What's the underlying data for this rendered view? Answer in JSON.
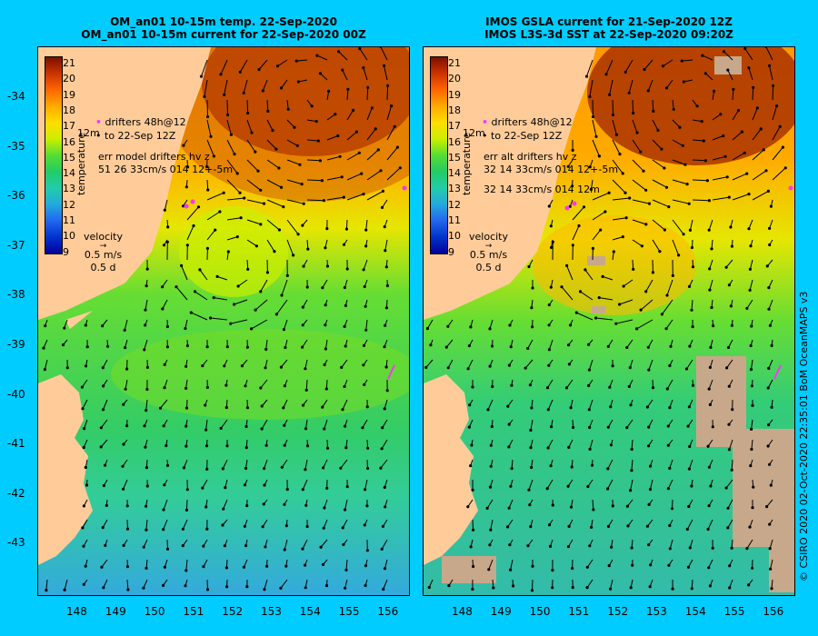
{
  "left_panel": {
    "title_line1": "OM_an01 10-15m temp. 22-Sep-2020",
    "title_line2": "OM_an01 10-15m current for 22-Sep-2020 00Z",
    "legend_depth": "12m",
    "legend_drift1": "drifters 48h@12",
    "legend_drift2": "to 22-Sep 12Z",
    "legend_err1": "err model drifters hv z",
    "legend_err2": "51 26 33cm/s 014 12+-5m",
    "legend_err3": ""
  },
  "right_panel": {
    "title_line1": "IMOS GSLA current for 21-Sep-2020 12Z",
    "title_line2": "IMOS L3S-3d SST at 22-Sep-2020 09:20Z",
    "legend_depth": "12m",
    "legend_drift1": "drifters 48h@12",
    "legend_drift2": "to 22-Sep 12Z",
    "legend_err1": "err alt drifters hv z",
    "legend_err2": "32 14 33cm/s 014 12+-5m",
    "legend_err3": "32 14 33cm/s 014 12m"
  },
  "colorbar": {
    "title": "temperature",
    "ticks": [
      "21",
      "20",
      "19",
      "18",
      "17",
      "16",
      "15",
      "14",
      "13",
      "12",
      "11",
      "10",
      "9"
    ]
  },
  "velocity_key": {
    "label": "velocity",
    "speed": "0.5 m/s",
    "time": "0.5 d"
  },
  "y_ticks": [
    "-34",
    "-35",
    "-36",
    "-37",
    "-38",
    "-39",
    "-40",
    "-41",
    "-42",
    "-43"
  ],
  "x_ticks": [
    "148",
    "149",
    "150",
    "151",
    "152",
    "153",
    "154",
    "155",
    "156"
  ],
  "credit": "© CSIRO 2020  02-Oct-2020 22:35:01 BoM OceanMAPS v3",
  "colors": {
    "background": "#00ccff",
    "land": "#ffcc99",
    "no_data": "#c8a88a",
    "drifter": "#ff33ff"
  }
}
